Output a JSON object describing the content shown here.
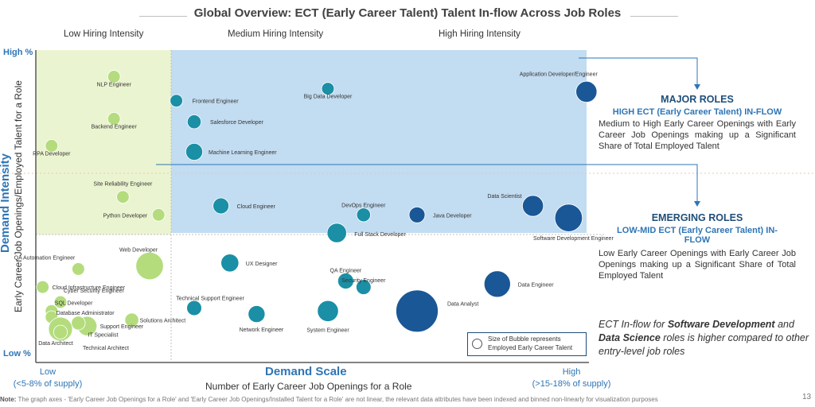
{
  "title": "Global Overview: ECT (Early Career Talent) Talent In-flow Across Job Roles",
  "bands": [
    "Low Hiring Intensity",
    "Medium Hiring Intensity",
    "High Hiring Intensity"
  ],
  "y_axis": {
    "title": "Demand Intensity",
    "subtitle": "Early Career Job Openings/Employed Talent for a Role",
    "high_label": "High %",
    "low_label": "Low %"
  },
  "x_axis": {
    "title": "Demand Scale",
    "subtitle": "Number of Early Career Job Openings for a Role",
    "low_label": "Low",
    "low_sub": "(<5-8% of supply)",
    "high_label": "High",
    "high_sub": "(>15-18% of supply)"
  },
  "callouts": {
    "major": {
      "title": "MAJOR ROLES",
      "subtitle": "HIGH ECT (Early Career Talent) IN-FLOW",
      "body": "Medium to High Early Career Openings with Early Career Job Openings making up a Significant Share of Total Employed Talent"
    },
    "emerging": {
      "title": "EMERGING ROLES",
      "subtitle": "LOW-MID ECT (Early Career Talent) IN-FLOW",
      "body": "Low Early Career Openings with Early Career Job Openings making up a Significant Share of Total Employed Talent"
    }
  },
  "ect_note": {
    "prefix": "ECT In-flow for ",
    "bold1": "Software Development",
    "mid": " and ",
    "bold2": "Data Science",
    "suffix": " roles is higher  compared to other entry-level job roles"
  },
  "legend": {
    "line1": "Size of Bubble represents",
    "line2": "Employed Early Career Talent"
  },
  "note": {
    "label": "Note:",
    "text": " The graph axes - 'Early Career Job Openings for a Role' and 'Early Career Job Openings/Installed Talent for a Role' are not linear, the relevant data attributes have been indexed and binned non-linearly for visualization purposes"
  },
  "page_number": "13",
  "colors": {
    "light_green": "#b4dc7d",
    "teal": "#1a8fa5",
    "dark_blue": "#1a5796",
    "accent_blue": "#2e75b6",
    "zone_green": "#ebf4d0",
    "zone_blue": "#c2dcf1"
  },
  "chart_data": {
    "type": "scatter",
    "xlabel": "Number of Early Career Job Openings for a Role",
    "ylabel": "Early Career Job Openings/Employed Talent for a Role",
    "xlim": [
      0,
      100
    ],
    "ylim": [
      0,
      100
    ],
    "size_meaning": "Employed Early Career Talent",
    "points": [
      {
        "label": "NLP Engineer",
        "x": 11,
        "y": 93,
        "size": 2.5,
        "color": "light_green"
      },
      {
        "label": "Backend Engineer",
        "x": 11,
        "y": 79,
        "size": 2.5,
        "color": "light_green"
      },
      {
        "label": "RPA Developer",
        "x": 4,
        "y": 70,
        "size": 2.5,
        "color": "light_green"
      },
      {
        "label": "Site Reliability Engineer",
        "x": 12,
        "y": 53,
        "size": 2.5,
        "color": "light_green"
      },
      {
        "label": "Python Developer",
        "x": 16,
        "y": 47,
        "size": 2.5,
        "color": "light_green"
      },
      {
        "label": "Web Developer",
        "x": 15,
        "y": 30,
        "size": 12,
        "color": "light_green"
      },
      {
        "label": "QA Automation Engineer",
        "x": 7,
        "y": 29,
        "size": 2.5,
        "color": "light_green"
      },
      {
        "label": "Cloud Infrastructure Engineer",
        "x": 3,
        "y": 23,
        "size": 2.5,
        "color": "light_green"
      },
      {
        "label": "Cyber Security Engineer",
        "x": 5,
        "y": 18,
        "size": 2.5,
        "color": "light_green"
      },
      {
        "label": "SQL Developer",
        "x": 4,
        "y": 15,
        "size": 2.5,
        "color": "light_green"
      },
      {
        "label": "Database Administrator",
        "x": 4,
        "y": 13,
        "size": 2.5,
        "color": "light_green"
      },
      {
        "label": "Solutions Architect",
        "x": 13,
        "y": 12,
        "size": 3,
        "color": "light_green"
      },
      {
        "label": "Support Engineer",
        "x": 8,
        "y": 10,
        "size": 6,
        "color": "light_green"
      },
      {
        "label": "IT Specialist",
        "x": 7,
        "y": 11,
        "size": 3,
        "color": "light_green"
      },
      {
        "label": "Data Architect",
        "x": 5,
        "y": 9,
        "size": 9,
        "color": "light_green"
      },
      {
        "label": "Technical Architect",
        "x": 5,
        "y": 8,
        "size": 3,
        "color": "light_green"
      },
      {
        "label": "Frontend Engineer",
        "x": 18,
        "y": 85,
        "size": 2.5,
        "color": "teal"
      },
      {
        "label": "Big Data Developer",
        "x": 35,
        "y": 89,
        "size": 2.5,
        "color": "teal"
      },
      {
        "label": "Salesforce Developer",
        "x": 20,
        "y": 78,
        "size": 3,
        "color": "teal"
      },
      {
        "label": "Machine Learning Engineer",
        "x": 20,
        "y": 68,
        "size": 4.5,
        "color": "teal"
      },
      {
        "label": "Cloud Engineer",
        "x": 23,
        "y": 50,
        "size": 4,
        "color": "teal"
      },
      {
        "label": "DevOps Engineer",
        "x": 39,
        "y": 47,
        "size": 3,
        "color": "teal"
      },
      {
        "label": "Full Stack Developer",
        "x": 36,
        "y": 41,
        "size": 6,
        "color": "teal"
      },
      {
        "label": "UX Designer",
        "x": 24,
        "y": 31,
        "size": 5,
        "color": "teal"
      },
      {
        "label": "QA Engineer",
        "x": 37,
        "y": 25,
        "size": 4,
        "color": "teal"
      },
      {
        "label": "Security Engineer",
        "x": 39,
        "y": 23,
        "size": 3.5,
        "color": "teal"
      },
      {
        "label": "Technical Support Engineer",
        "x": 20,
        "y": 16,
        "size": 3.5,
        "color": "teal"
      },
      {
        "label": "Network Engineer",
        "x": 27,
        "y": 14,
        "size": 4.5,
        "color": "teal"
      },
      {
        "label": "System Engineer",
        "x": 35,
        "y": 15,
        "size": 7,
        "color": "teal"
      },
      {
        "label": "Application Developer/Engineer",
        "x": 64,
        "y": 88,
        "size": 7,
        "color": "dark_blue"
      },
      {
        "label": "Data Scientist",
        "x": 58,
        "y": 50,
        "size": 7,
        "color": "dark_blue"
      },
      {
        "label": "Java Developer",
        "x": 45,
        "y": 47,
        "size": 4,
        "color": "dark_blue"
      },
      {
        "label": "Software Development Engineer",
        "x": 62,
        "y": 46,
        "size": 12,
        "color": "dark_blue"
      },
      {
        "label": "Data Engineer",
        "x": 54,
        "y": 24,
        "size": 11,
        "color": "dark_blue"
      },
      {
        "label": "Data Analyst",
        "x": 45,
        "y": 15,
        "size": 28,
        "color": "dark_blue"
      }
    ]
  }
}
